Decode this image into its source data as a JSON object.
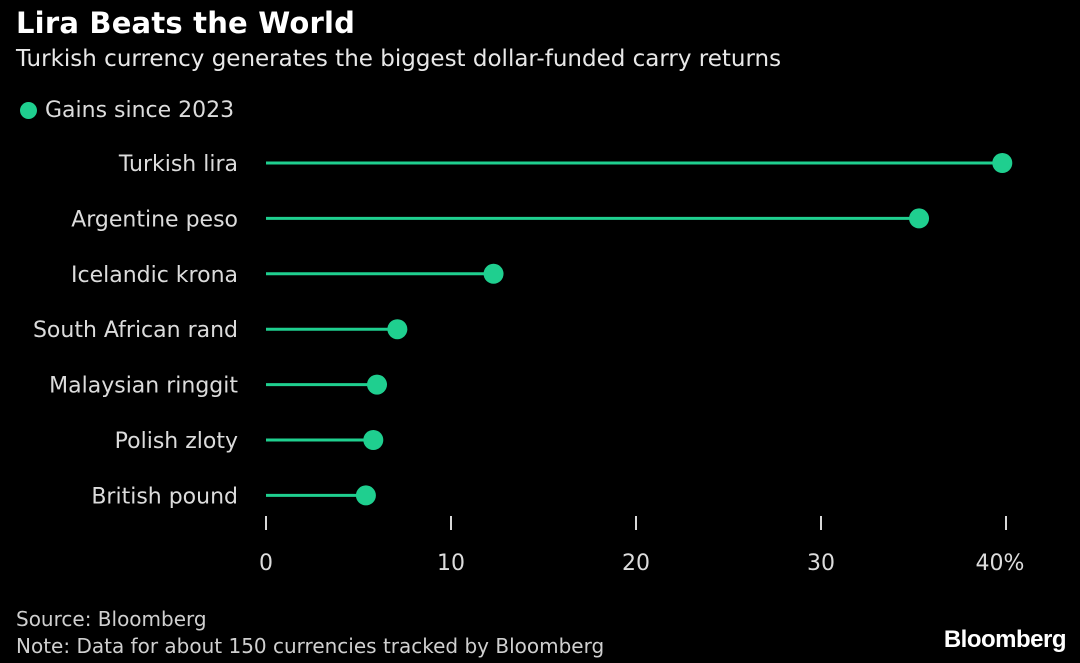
{
  "title": "Lira Beats the World",
  "subtitle": "Turkish currency generates the biggest dollar-funded carry returns",
  "colors": {
    "accent": "#1fcf8f",
    "background": "#000000",
    "text": "#e6e6e6"
  },
  "chart_data": {
    "type": "lollipop",
    "series": [
      {
        "name": "Gains since 2023",
        "values": [
          39.8,
          35.3,
          12.3,
          7.1,
          6.0,
          5.8,
          5.4
        ]
      }
    ],
    "categories": [
      "Turkish lira",
      "Argentine peso",
      "Icelandic krona",
      "South African rand",
      "Malaysian ringgit",
      "Polish zloty",
      "British pound"
    ],
    "x_ticks": [
      0,
      10,
      20,
      30,
      40
    ],
    "x_tick_labels": [
      "0",
      "10",
      "20",
      "30",
      "40%"
    ],
    "xlim": [
      0,
      40
    ],
    "grid": false,
    "legend_position": "top-left"
  },
  "footer": {
    "source": "Source: Bloomberg",
    "note": "Note: Data for about 150 currencies tracked by Bloomberg"
  },
  "brand": "Bloomberg"
}
